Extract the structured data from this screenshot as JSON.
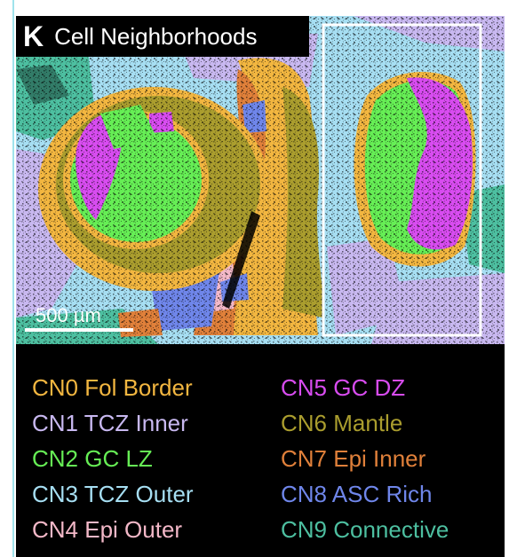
{
  "panel": {
    "letter": "K",
    "title": "Cell Neighborhoods"
  },
  "scalebar": {
    "label": "500 µm"
  },
  "legend": [
    {
      "label": "CN0 Fol Border",
      "color": "#f2b640"
    },
    {
      "label": "CN1 TCZ Inner",
      "color": "#c8b8f0"
    },
    {
      "label": "CN2 GC LZ",
      "color": "#66ee55"
    },
    {
      "label": "CN3 TCZ Outer",
      "color": "#a6def2"
    },
    {
      "label": "CN4 Epi Outer",
      "color": "#f3b8c8"
    },
    {
      "label": "CN5 GC DZ",
      "color": "#d84cf0"
    },
    {
      "label": "CN6 Mantle",
      "color": "#aa9d2e"
    },
    {
      "label": "CN7 Epi Inner",
      "color": "#e0803a"
    },
    {
      "label": "CN8 ASC Rich",
      "color": "#6f86ea"
    },
    {
      "label": "CN9 Connective",
      "color": "#4dbfa0"
    }
  ]
}
